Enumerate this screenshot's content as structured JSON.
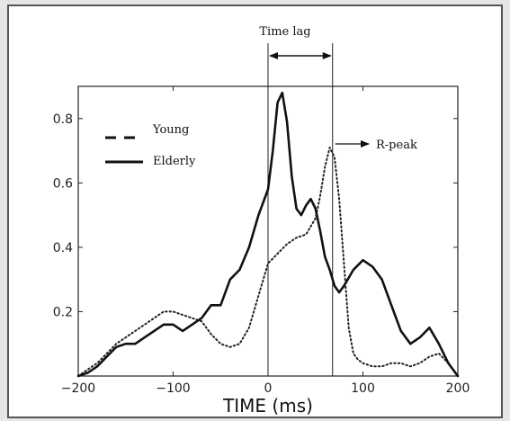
{
  "chart_data": {
    "type": "line",
    "title": "",
    "xlabel": "TIME (ms)",
    "ylabel": "",
    "xlim": [
      -200,
      200
    ],
    "ylim": [
      0,
      0.9
    ],
    "xticks": [
      -200,
      -100,
      0,
      100,
      200
    ],
    "yticks": [
      0.2,
      0.4,
      0.6,
      0.8
    ],
    "grid": false,
    "legend_position": "top-left",
    "series": [
      {
        "name": "Young",
        "style": "dotted",
        "color": "#222222",
        "x": [
          -200,
          -190,
          -180,
          -170,
          -160,
          -150,
          -140,
          -130,
          -120,
          -110,
          -100,
          -90,
          -80,
          -70,
          -60,
          -50,
          -40,
          -30,
          -20,
          -10,
          0,
          10,
          20,
          30,
          40,
          50,
          55,
          60,
          65,
          70,
          75,
          80,
          85,
          90,
          95,
          100,
          110,
          120,
          130,
          140,
          150,
          160,
          170,
          180,
          190,
          200
        ],
        "y": [
          0.0,
          0.02,
          0.04,
          0.07,
          0.1,
          0.12,
          0.14,
          0.16,
          0.18,
          0.2,
          0.2,
          0.19,
          0.18,
          0.17,
          0.13,
          0.1,
          0.09,
          0.1,
          0.15,
          0.25,
          0.35,
          0.38,
          0.41,
          0.43,
          0.44,
          0.49,
          0.56,
          0.65,
          0.71,
          0.68,
          0.55,
          0.35,
          0.15,
          0.07,
          0.05,
          0.04,
          0.03,
          0.03,
          0.04,
          0.04,
          0.03,
          0.04,
          0.06,
          0.07,
          0.04,
          0.0
        ]
      },
      {
        "name": "Elderly",
        "style": "solid",
        "color": "#111111",
        "x": [
          -200,
          -190,
          -180,
          -170,
          -160,
          -150,
          -140,
          -130,
          -120,
          -110,
          -100,
          -90,
          -80,
          -70,
          -60,
          -50,
          -40,
          -30,
          -20,
          -10,
          0,
          5,
          10,
          15,
          20,
          25,
          30,
          35,
          40,
          45,
          50,
          55,
          60,
          65,
          70,
          75,
          80,
          90,
          100,
          110,
          120,
          130,
          140,
          150,
          160,
          170,
          180,
          190,
          200
        ],
        "y": [
          0.0,
          0.01,
          0.03,
          0.06,
          0.09,
          0.1,
          0.1,
          0.12,
          0.14,
          0.16,
          0.16,
          0.14,
          0.16,
          0.18,
          0.22,
          0.22,
          0.3,
          0.33,
          0.4,
          0.5,
          0.58,
          0.7,
          0.85,
          0.88,
          0.79,
          0.62,
          0.52,
          0.5,
          0.53,
          0.55,
          0.52,
          0.45,
          0.37,
          0.33,
          0.28,
          0.26,
          0.28,
          0.33,
          0.36,
          0.34,
          0.3,
          0.22,
          0.14,
          0.1,
          0.12,
          0.15,
          0.1,
          0.04,
          0.0
        ]
      }
    ],
    "annotations": {
      "time_lag_label": "Time lag",
      "time_lag_range": [
        0,
        68
      ],
      "r_peak_label": "R-peak",
      "r_peak_x": 68
    }
  }
}
